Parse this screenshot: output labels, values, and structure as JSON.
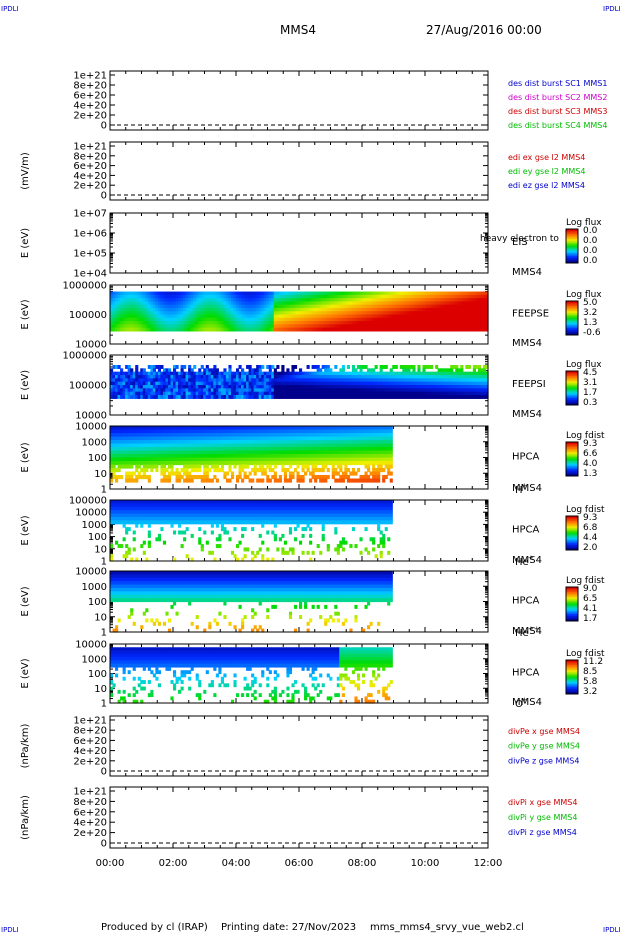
{
  "header": {
    "corner_tl": "IPDLI",
    "corner_tr": "IPDLI",
    "corner_bl": "IPDLI",
    "corner_br": "IPDLI",
    "spacecraft": "MMS4",
    "datetime": "27/Aug/2016 00:00"
  },
  "footer": {
    "produced_by": "Produced by cl (IRAP)",
    "printing_date": "Printing date: 27/Nov/2023",
    "script": "mms_mms4_srvy_vue_web2.cl"
  },
  "colors": {
    "c_blue": "#0000cc",
    "c_magenta": "#cc00cc",
    "c_red": "#cc0000",
    "c_green": "#00bb00",
    "c_gray": "#666666"
  },
  "chart_data": [
    {
      "type": "line",
      "panel": "des-dist",
      "ylabel": "",
      "yticks": [
        "1e+21",
        "8e+20",
        "6e+20",
        "4e+20",
        "2e+20",
        "0"
      ],
      "xlim": [
        "00:00",
        "12:00"
      ],
      "series": [
        {
          "name": "des dist burst SC1 MMS1",
          "color": "c_blue",
          "values": []
        },
        {
          "name": "des dist burst SC2 MMS2",
          "color": "c_magenta",
          "values": []
        },
        {
          "name": "des dist burst SC3 MMS3",
          "color": "c_red",
          "values": []
        },
        {
          "name": "des dist burst SC4 MMS4",
          "color": "c_green",
          "values": []
        }
      ]
    },
    {
      "type": "line",
      "panel": "edi",
      "ylabel": "(mV/m)",
      "yticks": [
        "1e+21",
        "8e+20",
        "6e+20",
        "4e+20",
        "2e+20",
        "0"
      ],
      "xlim": [
        "00:00",
        "12:00"
      ],
      "series": [
        {
          "name": "edi ex gse l2 MMS4",
          "color": "c_red",
          "values": []
        },
        {
          "name": "edi ey gse l2 MMS4",
          "color": "c_green",
          "values": []
        },
        {
          "name": "edi ez gse l2 MMS4",
          "color": "c_blue",
          "values": []
        }
      ]
    },
    {
      "type": "heatmap",
      "panel": "eis",
      "ylabel": "E (eV)",
      "yticks": [
        "1e+07",
        "1e+06",
        "1e+05",
        "1e+04"
      ],
      "instrument": "EIS",
      "subtitle": "heavy electron to",
      "spacecraft": "MMS4",
      "colorbar": {
        "title": "Log flux",
        "ticks": [
          "0.0",
          "0.0",
          "0.0",
          "0.0"
        ]
      }
    },
    {
      "type": "heatmap",
      "panel": "feepse",
      "ylabel": "E (eV)",
      "yticks": [
        "1000000",
        "100000",
        "10000"
      ],
      "instrument": "FEEPSE",
      "spacecraft": "MMS4",
      "colorbar": {
        "title": "Log flux",
        "ticks": [
          "5.0",
          "3.2",
          "1.3",
          "-0.6"
        ]
      }
    },
    {
      "type": "heatmap",
      "panel": "feepsi",
      "ylabel": "E (eV)",
      "yticks": [
        "1000000",
        "100000",
        "10000"
      ],
      "instrument": "FEEPSI",
      "spacecraft": "MMS4",
      "colorbar": {
        "title": "Log flux",
        "ticks": [
          "4.5",
          "3.1",
          "1.7",
          "0.3"
        ]
      }
    },
    {
      "type": "heatmap",
      "panel": "hpca-h",
      "ylabel": "E (eV)",
      "yticks": [
        "10000",
        "1000",
        "100",
        "10",
        "1"
      ],
      "instrument": "HPCA",
      "spacecraft": "MMS4",
      "species": "H",
      "charge": "+",
      "colorbar": {
        "title": "Log fdist",
        "ticks": [
          "9.3",
          "6.6",
          "4.0",
          "1.3"
        ]
      }
    },
    {
      "type": "heatmap",
      "panel": "hpca-he",
      "ylabel": "E (eV)",
      "yticks": [
        "100000",
        "10000",
        "1000",
        "100",
        "10",
        "1"
      ],
      "instrument": "HPCA",
      "spacecraft": "MMS4",
      "species": "He",
      "charge": "+",
      "colorbar": {
        "title": "Log fdist",
        "ticks": [
          "9.3",
          "6.8",
          "4.4",
          "2.0"
        ]
      }
    },
    {
      "type": "heatmap",
      "panel": "hpca-hepp",
      "ylabel": "E (eV)",
      "yticks": [
        "10000",
        "1000",
        "100",
        "10",
        "1"
      ],
      "instrument": "HPCA",
      "spacecraft": "MMS4",
      "species": "He",
      "charge": "++",
      "colorbar": {
        "title": "Log fdist",
        "ticks": [
          "9.0",
          "6.5",
          "4.1",
          "1.7"
        ]
      }
    },
    {
      "type": "heatmap",
      "panel": "hpca-o",
      "ylabel": "E (eV)",
      "yticks": [
        "10000",
        "1000",
        "100",
        "10",
        "1"
      ],
      "instrument": "HPCA",
      "spacecraft": "MMS4",
      "species": "O",
      "charge": "+",
      "colorbar": {
        "title": "Log fdist",
        "ticks": [
          "11.2",
          "8.5",
          "5.8",
          "3.2"
        ]
      }
    },
    {
      "type": "line",
      "panel": "divpe",
      "ylabel": "(nPa/km)",
      "yticks": [
        "1e+21",
        "8e+20",
        "6e+20",
        "4e+20",
        "2e+20",
        "0"
      ],
      "series": [
        {
          "name": "divPe x gse MMS4",
          "color": "c_red",
          "values": []
        },
        {
          "name": "divPe y gse MMS4",
          "color": "c_green",
          "values": []
        },
        {
          "name": "divPe z gse MMS4",
          "color": "c_blue",
          "values": []
        }
      ]
    },
    {
      "type": "line",
      "panel": "divpi",
      "ylabel": "(nPa/km)",
      "yticks": [
        "1e+21",
        "8e+20",
        "6e+20",
        "4e+20",
        "2e+20",
        "0"
      ],
      "xticks": [
        "00:00",
        "02:00",
        "04:00",
        "06:00",
        "08:00",
        "10:00",
        "12:00"
      ],
      "series": [
        {
          "name": "divPi x gse MMS4",
          "color": "c_red",
          "values": []
        },
        {
          "name": "divPi y gse MMS4",
          "color": "c_green",
          "values": []
        },
        {
          "name": "divPi z gse MMS4",
          "color": "c_blue",
          "values": []
        }
      ]
    }
  ]
}
